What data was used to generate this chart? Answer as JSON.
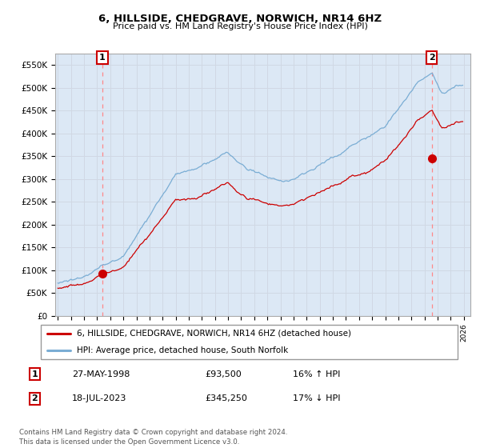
{
  "title": "6, HILLSIDE, CHEDGRAVE, NORWICH, NR14 6HZ",
  "subtitle": "Price paid vs. HM Land Registry's House Price Index (HPI)",
  "ylim": [
    0,
    575000
  ],
  "yticks": [
    0,
    50000,
    100000,
    150000,
    200000,
    250000,
    300000,
    350000,
    400000,
    450000,
    500000,
    550000
  ],
  "ytick_labels": [
    "£0",
    "£50K",
    "£100K",
    "£150K",
    "£200K",
    "£250K",
    "£300K",
    "£350K",
    "£400K",
    "£450K",
    "£500K",
    "£550K"
  ],
  "x_start_year": 1995,
  "x_end_year": 2026,
  "sale1_year": 1998.4,
  "sale1_price": 93500,
  "sale1_label": "1",
  "sale2_year": 2023.55,
  "sale2_price": 345250,
  "sale2_label": "2",
  "legend_line1": "6, HILLSIDE, CHEDGRAVE, NORWICH, NR14 6HZ (detached house)",
  "legend_line2": "HPI: Average price, detached house, South Norfolk",
  "table_row1": [
    "1",
    "27-MAY-1998",
    "£93,500",
    "16% ↑ HPI"
  ],
  "table_row2": [
    "2",
    "18-JUL-2023",
    "£345,250",
    "17% ↓ HPI"
  ],
  "footnote": "Contains HM Land Registry data © Crown copyright and database right 2024.\nThis data is licensed under the Open Government Licence v3.0.",
  "hpi_color": "#7aadd4",
  "price_color": "#cc0000",
  "marker_color": "#cc0000",
  "vline_color": "#ff8888",
  "grid_color": "#d0d8e4",
  "background_color": "#ffffff",
  "plot_bg_color": "#dce8f5"
}
